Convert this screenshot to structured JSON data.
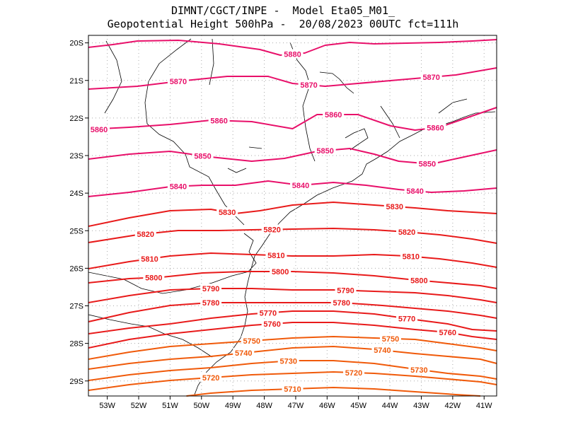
{
  "title": {
    "line1": "DIMNT/CGCT/INPE -  Model Eta05_M01_",
    "line2": "Geopotential Height 500hPa -  20/08/2023 00UTC fct=111h"
  },
  "chart_data": {
    "type": "contour",
    "variable": "Geopotential Height 500hPa",
    "units": "gpm",
    "lon_range": [
      -53.6,
      -40.6
    ],
    "lat_range": [
      -29.4,
      -19.8
    ],
    "x_ticks": [
      "53W",
      "52W",
      "51W",
      "50W",
      "49W",
      "48W",
      "47W",
      "46W",
      "45W",
      "44W",
      "43W",
      "42W",
      "41W"
    ],
    "y_ticks": [
      "20S",
      "21S",
      "22S",
      "23S",
      "24S",
      "25S",
      "26S",
      "27S",
      "28S",
      "29S"
    ],
    "contour_interval": 10,
    "contours": [
      {
        "value": 5880,
        "labels": [
          "5880"
        ]
      },
      {
        "value": 5870,
        "labels": [
          "5870",
          "5870",
          "5870"
        ]
      },
      {
        "value": 5860,
        "labels": [
          "5860",
          "5860",
          "5860",
          "5860"
        ]
      },
      {
        "value": 5850,
        "labels": [
          "5850",
          "5850",
          "5850"
        ]
      },
      {
        "value": 5840,
        "labels": [
          "5840",
          "5840",
          "5840"
        ]
      },
      {
        "value": 5830,
        "labels": [
          "5830",
          "5830"
        ]
      },
      {
        "value": 5820,
        "labels": [
          "5820",
          "5820",
          "5820"
        ]
      },
      {
        "value": 5810,
        "labels": [
          "5810",
          "5810",
          "5810"
        ]
      },
      {
        "value": 5800,
        "labels": [
          "5800",
          "5800",
          "5800"
        ]
      },
      {
        "value": 5790,
        "labels": [
          "5790",
          "5790"
        ]
      },
      {
        "value": 5780,
        "labels": [
          "5780",
          "5780"
        ]
      },
      {
        "value": 5770,
        "labels": [
          "5770",
          "5770"
        ]
      },
      {
        "value": 5760,
        "labels": [
          "5760",
          "5760"
        ]
      },
      {
        "value": 5750,
        "labels": [
          "5750",
          "5750"
        ]
      },
      {
        "value": 5740,
        "labels": [
          "5740",
          "5740"
        ]
      },
      {
        "value": 5730,
        "labels": [
          "5730",
          "5730"
        ]
      },
      {
        "value": 5720,
        "labels": [
          "5720",
          "5720"
        ]
      },
      {
        "value": 5710,
        "labels": [
          "5710"
        ]
      }
    ],
    "colors": {
      "high": "#e8106a",
      "mid": "#e81a1a",
      "low": "#f05a0a",
      "grid": "#aaaaaa",
      "coast": "#000000"
    }
  }
}
